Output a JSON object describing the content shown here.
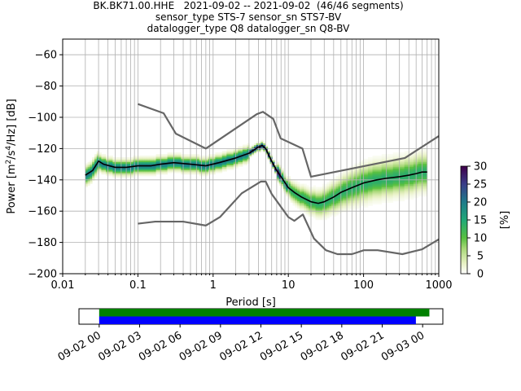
{
  "figure": {
    "title_lines": [
      "BK.BK71.00.HHE   2021-09-02 -- 2021-09-02  (46/46 segments)",
      "sensor_type STS-7 sensor_sn STS7-BV",
      "datalogger_type Q8 datalogger_sn Q8-BV"
    ]
  },
  "colors": {
    "background": "#ffffff",
    "grid": "#b0b0b0",
    "model_curve": "#666666",
    "mean_curve": "#000000",
    "coverage_top": "#008000",
    "coverage_bottom": "#0000ff"
  },
  "chart_data": [
    {
      "type": "heatmap",
      "subtype": "probabilistic-power-spectral-density",
      "xlabel": "Period [s]",
      "ylabel_parts": [
        "Power [m",
        "2",
        "/s",
        "4",
        "/Hz] [dB]"
      ],
      "x_scale": "log",
      "xlim": [
        0.01,
        1000
      ],
      "ylim": [
        -200,
        -50
      ],
      "x_ticks": [
        {
          "value": 0.01,
          "label": "0.01"
        },
        {
          "value": 0.1,
          "label": "0.1"
        },
        {
          "value": 1,
          "label": "1"
        },
        {
          "value": 10,
          "label": "10"
        },
        {
          "value": 100,
          "label": "100"
        },
        {
          "value": 1000,
          "label": "1000"
        }
      ],
      "y_ticks": [
        {
          "value": -60,
          "label": "−60"
        },
        {
          "value": -80,
          "label": "−80"
        },
        {
          "value": -100,
          "label": "−100"
        },
        {
          "value": -120,
          "label": "−120"
        },
        {
          "value": -140,
          "label": "−140"
        },
        {
          "value": -160,
          "label": "−160"
        },
        {
          "value": -180,
          "label": "−180"
        },
        {
          "value": -200,
          "label": "−200"
        }
      ],
      "grid": true,
      "colorbar": {
        "label": "[%]",
        "range": [
          0,
          30
        ],
        "ticks": [
          {
            "value": 0,
            "label": "0"
          },
          {
            "value": 5,
            "label": "5"
          },
          {
            "value": 10,
            "label": "10"
          },
          {
            "value": 15,
            "label": "15"
          },
          {
            "value": 20,
            "label": "20"
          },
          {
            "value": 25,
            "label": "25"
          },
          {
            "value": 30,
            "label": "30"
          }
        ],
        "stops": [
          {
            "value": 0,
            "color": "#ffffff"
          },
          {
            "value": 3,
            "color": "#e6f0c0"
          },
          {
            "value": 7,
            "color": "#a8d878"
          },
          {
            "value": 10,
            "color": "#58c040"
          },
          {
            "value": 15,
            "color": "#20a878"
          },
          {
            "value": 20,
            "color": "#1e7a8a"
          },
          {
            "value": 25,
            "color": "#3a3d88"
          },
          {
            "value": 30,
            "color": "#40004b"
          }
        ]
      },
      "series": [
        {
          "name": "new high noise model",
          "x": [
            0.1,
            0.22,
            0.32,
            0.8,
            3.8,
            4.6,
            6.3,
            7.9,
            15.4,
            20,
            354.8,
            1000
          ],
          "y": [
            -91.5,
            -97.4,
            -110.5,
            -120,
            -98,
            -96.5,
            -101,
            -113.5,
            -120,
            -138,
            -126,
            -112
          ]
        },
        {
          "name": "new low noise model",
          "x": [
            0.1,
            0.17,
            0.4,
            0.8,
            1.24,
            2.4,
            4.3,
            5,
            6,
            10,
            12,
            15.6,
            21.9,
            31.6,
            45,
            70,
            101,
            154,
            328,
            600,
            1000
          ],
          "y": [
            -168,
            -166.7,
            -166.7,
            -169.2,
            -163.7,
            -148.6,
            -141.1,
            -141.1,
            -149,
            -163.8,
            -166.2,
            -162.1,
            -177.5,
            -185,
            -187.5,
            -187.5,
            -185,
            -185,
            -187.5,
            -184.4,
            -178
          ]
        },
        {
          "name": "mean",
          "x": [
            0.02,
            0.025,
            0.03,
            0.035,
            0.05,
            0.07,
            0.1,
            0.15,
            0.2,
            0.3,
            0.5,
            0.8,
            1.2,
            2,
            3,
            4,
            4.5,
            5,
            6,
            7,
            8,
            10,
            12,
            15,
            20,
            25,
            30,
            40,
            50,
            70,
            100,
            150,
            200,
            300,
            400,
            500,
            600,
            700
          ],
          "y": [
            -137,
            -134,
            -128,
            -130,
            -132,
            -132,
            -131,
            -131,
            -130,
            -129,
            -130,
            -131,
            -129,
            -126,
            -123,
            -119,
            -118,
            -120,
            -128,
            -134,
            -138,
            -145,
            -148,
            -151,
            -154,
            -155,
            -154,
            -151,
            -148,
            -145,
            -142,
            -140,
            -139,
            -138,
            -137,
            -136,
            -135,
            -135
          ]
        }
      ]
    },
    {
      "type": "timeline",
      "x_ticks": [
        "09-02 00",
        "09-02 03",
        "09-02 06",
        "09-02 09",
        "09-02 12",
        "09-02 15",
        "09-02 18",
        "09-02 21",
        "09-03 00"
      ],
      "x_range_hours": [
        -1.5,
        25.5
      ],
      "bars": [
        {
          "row": "top",
          "start_hour": 0,
          "end_hour": 24.5
        },
        {
          "row": "bottom",
          "start_hour": 0,
          "end_hour": 23.5
        }
      ]
    }
  ]
}
